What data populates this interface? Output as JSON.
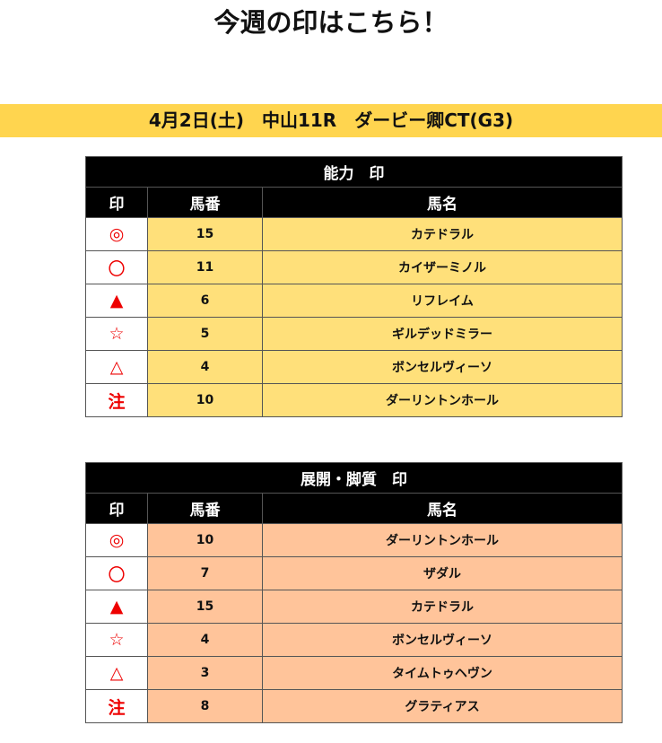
{
  "title": "今週の印はこちら！",
  "race_banner": "4月2日(土)　中山11R　ダービー卿CT(G3)",
  "colors": {
    "banner": "#FFD54F",
    "ability_rows": "#FFE07A",
    "pace_rows": "#FFC49A",
    "mark": "#EE0000"
  },
  "tables": [
    {
      "heading": "能力　印",
      "columns": [
        "印",
        "馬番",
        "馬名"
      ],
      "rows": [
        {
          "mark": "◎",
          "number": "15",
          "name": "カテドラル"
        },
        {
          "mark": "〇",
          "number": "11",
          "name": "カイザーミノル"
        },
        {
          "mark": "▲",
          "number": "6",
          "name": "リフレイム"
        },
        {
          "mark": "☆",
          "number": "5",
          "name": "ギルデッドミラー"
        },
        {
          "mark": "△",
          "number": "4",
          "name": "ボンセルヴィーソ"
        },
        {
          "mark": "注",
          "number": "10",
          "name": "ダーリントンホール"
        }
      ]
    },
    {
      "heading": "展開・脚質　印",
      "columns": [
        "印",
        "馬番",
        "馬名"
      ],
      "rows": [
        {
          "mark": "◎",
          "number": "10",
          "name": "ダーリントンホール"
        },
        {
          "mark": "〇",
          "number": "7",
          "name": "ザダル"
        },
        {
          "mark": "▲",
          "number": "15",
          "name": "カテドラル"
        },
        {
          "mark": "☆",
          "number": "4",
          "name": "ボンセルヴィーソ"
        },
        {
          "mark": "△",
          "number": "3",
          "name": "タイムトゥヘヴン"
        },
        {
          "mark": "注",
          "number": "8",
          "name": "グラティアス"
        }
      ]
    }
  ]
}
